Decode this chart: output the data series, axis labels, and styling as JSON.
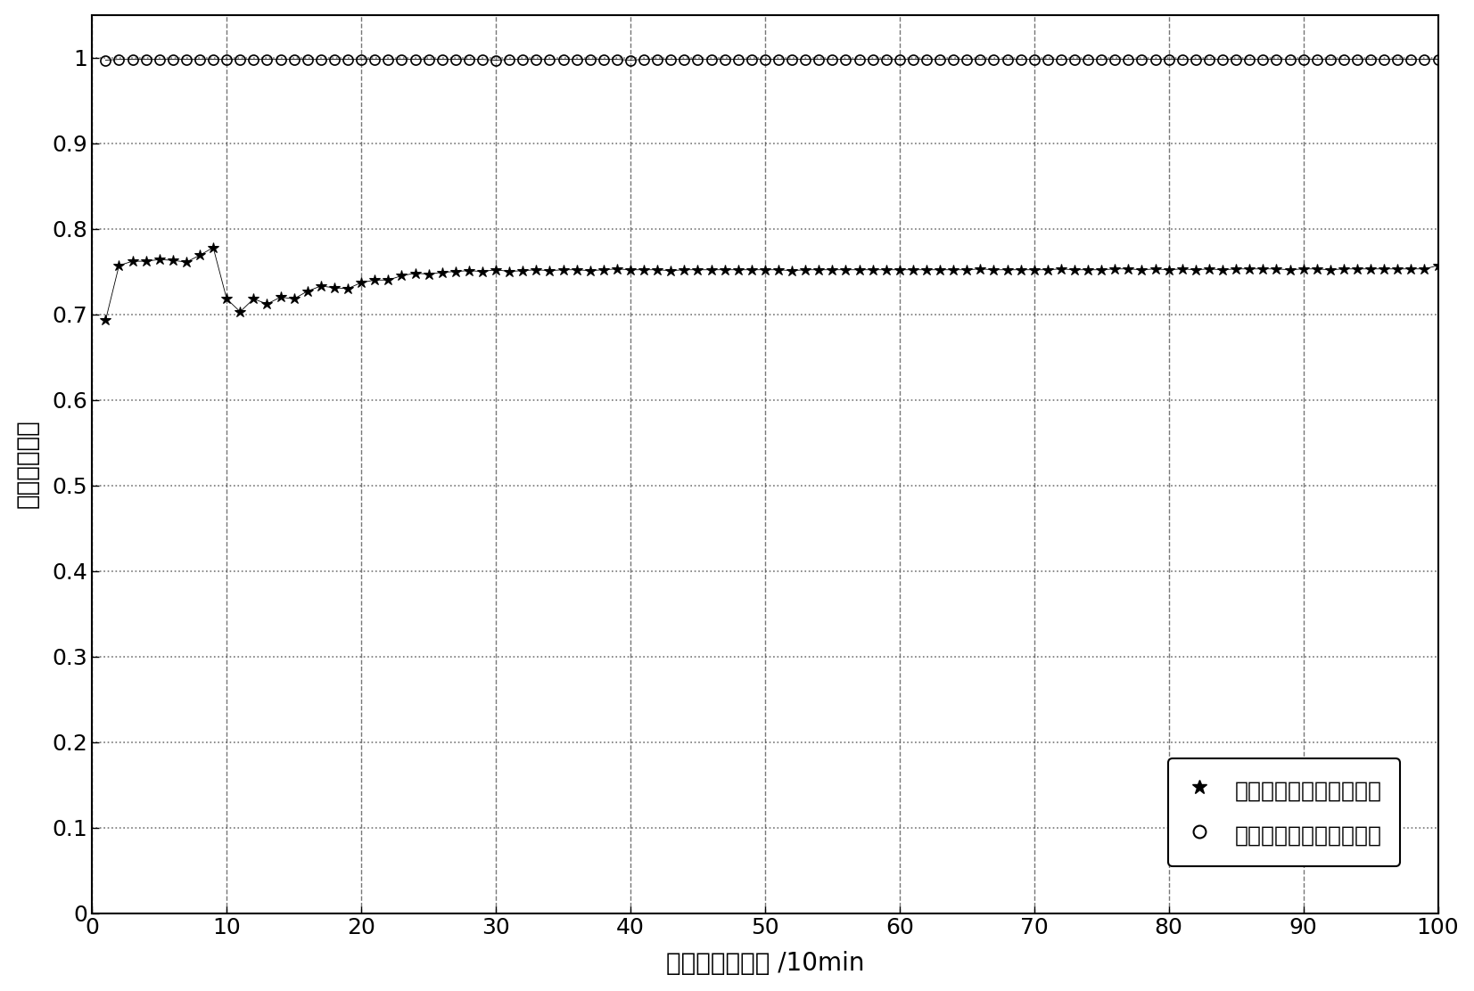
{
  "title": "",
  "xlabel": "用户的移动时间 /10min",
  "ylabel": "切换成功概率",
  "xlim": [
    0,
    100
  ],
  "ylim": [
    0,
    1.05
  ],
  "xticks": [
    0,
    10,
    20,
    30,
    40,
    50,
    60,
    70,
    80,
    90,
    100
  ],
  "yticks": [
    0,
    0.1,
    0.2,
    0.3,
    0.4,
    0.5,
    0.6,
    0.7,
    0.8,
    0.9,
    1.0
  ],
  "legend1": "原切换决策下的统计结果",
  "legend2": "现切换决策下的统计结果",
  "line1_color": "#000000",
  "line2_color": "#000000",
  "background_color": "#ffffff",
  "grid_h_color": "#555555",
  "grid_v_color": "#555555",
  "series1_x": [
    1,
    2,
    3,
    4,
    5,
    6,
    7,
    8,
    9,
    10,
    11,
    12,
    13,
    14,
    15,
    16,
    17,
    18,
    19,
    20,
    21,
    22,
    23,
    24,
    25,
    26,
    27,
    28,
    29,
    30,
    31,
    32,
    33,
    34,
    35,
    36,
    37,
    38,
    39,
    40,
    41,
    42,
    43,
    44,
    45,
    46,
    47,
    48,
    49,
    50,
    51,
    52,
    53,
    54,
    55,
    56,
    57,
    58,
    59,
    60,
    61,
    62,
    63,
    64,
    65,
    66,
    67,
    68,
    69,
    70,
    71,
    72,
    73,
    74,
    75,
    76,
    77,
    78,
    79,
    80,
    81,
    82,
    83,
    84,
    85,
    86,
    87,
    88,
    89,
    90,
    91,
    92,
    93,
    94,
    95,
    96,
    97,
    98,
    99,
    100
  ],
  "series1_y": [
    0.693,
    0.757,
    0.762,
    0.762,
    0.764,
    0.763,
    0.761,
    0.769,
    0.778,
    0.718,
    0.703,
    0.718,
    0.712,
    0.72,
    0.718,
    0.727,
    0.733,
    0.731,
    0.73,
    0.737,
    0.74,
    0.74,
    0.745,
    0.748,
    0.747,
    0.749,
    0.75,
    0.751,
    0.75,
    0.752,
    0.75,
    0.751,
    0.752,
    0.751,
    0.752,
    0.752,
    0.751,
    0.752,
    0.753,
    0.752,
    0.752,
    0.752,
    0.751,
    0.752,
    0.752,
    0.752,
    0.752,
    0.752,
    0.752,
    0.752,
    0.752,
    0.751,
    0.752,
    0.752,
    0.752,
    0.752,
    0.752,
    0.752,
    0.752,
    0.752,
    0.752,
    0.752,
    0.752,
    0.752,
    0.752,
    0.753,
    0.752,
    0.752,
    0.752,
    0.752,
    0.752,
    0.753,
    0.752,
    0.752,
    0.752,
    0.753,
    0.753,
    0.752,
    0.753,
    0.752,
    0.753,
    0.752,
    0.753,
    0.752,
    0.753,
    0.753,
    0.753,
    0.753,
    0.752,
    0.753,
    0.753,
    0.752,
    0.753,
    0.753,
    0.753,
    0.753,
    0.753,
    0.753,
    0.753,
    0.757
  ],
  "series2_x": [
    1,
    2,
    3,
    4,
    5,
    6,
    7,
    8,
    9,
    10,
    11,
    12,
    13,
    14,
    15,
    16,
    17,
    18,
    19,
    20,
    21,
    22,
    23,
    24,
    25,
    26,
    27,
    28,
    29,
    30,
    31,
    32,
    33,
    34,
    35,
    36,
    37,
    38,
    39,
    40,
    41,
    42,
    43,
    44,
    45,
    46,
    47,
    48,
    49,
    50,
    51,
    52,
    53,
    54,
    55,
    56,
    57,
    58,
    59,
    60,
    61,
    62,
    63,
    64,
    65,
    66,
    67,
    68,
    69,
    70,
    71,
    72,
    73,
    74,
    75,
    76,
    77,
    78,
    79,
    80,
    81,
    82,
    83,
    84,
    85,
    86,
    87,
    88,
    89,
    90,
    91,
    92,
    93,
    94,
    95,
    96,
    97,
    98,
    99,
    100
  ],
  "series2_y": [
    0.997,
    0.998,
    0.998,
    0.998,
    0.998,
    0.998,
    0.998,
    0.998,
    0.998,
    0.998,
    0.998,
    0.998,
    0.998,
    0.998,
    0.998,
    0.998,
    0.998,
    0.998,
    0.998,
    0.998,
    0.998,
    0.998,
    0.998,
    0.998,
    0.998,
    0.998,
    0.998,
    0.998,
    0.998,
    0.997,
    0.998,
    0.998,
    0.998,
    0.998,
    0.998,
    0.998,
    0.998,
    0.998,
    0.998,
    0.997,
    0.998,
    0.998,
    0.998,
    0.998,
    0.998,
    0.998,
    0.998,
    0.998,
    0.998,
    0.998,
    0.998,
    0.998,
    0.998,
    0.998,
    0.998,
    0.998,
    0.998,
    0.998,
    0.998,
    0.998,
    0.998,
    0.998,
    0.998,
    0.998,
    0.998,
    0.998,
    0.998,
    0.998,
    0.998,
    0.998,
    0.998,
    0.998,
    0.998,
    0.998,
    0.998,
    0.998,
    0.998,
    0.998,
    0.998,
    0.998,
    0.998,
    0.998,
    0.998,
    0.998,
    0.998,
    0.998,
    0.998,
    0.998,
    0.998,
    0.998,
    0.998,
    0.998,
    0.998,
    0.998,
    0.998,
    0.998,
    0.998,
    0.998,
    0.998,
    0.998
  ]
}
